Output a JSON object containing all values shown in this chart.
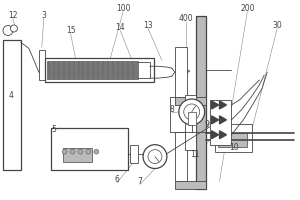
{
  "bg": "white",
  "lc": "#555555",
  "dc": "#444444",
  "gc": "#888888",
  "lgc": "#bbbbbb",
  "blk": "#222222",
  "fig_w": 3.0,
  "fig_h": 2.0,
  "dpi": 100,
  "xlim": [
    0,
    300
  ],
  "ylim": [
    0,
    200
  ]
}
